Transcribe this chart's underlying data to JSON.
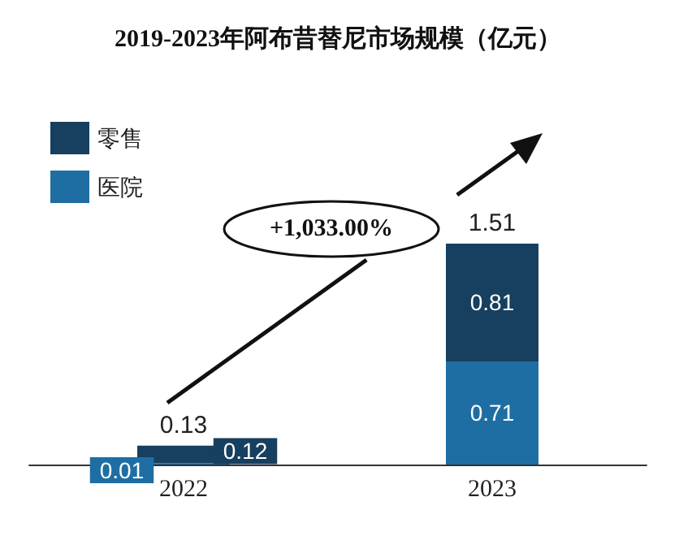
{
  "chart_data": {
    "type": "bar",
    "title": "2019-2023年阿布昔替尼市场规模（亿元）",
    "categories": [
      "2022",
      "2023"
    ],
    "stacked": true,
    "series": [
      {
        "name": "医院",
        "color": "#1f6ea3",
        "values": [
          0.01,
          0.71
        ]
      },
      {
        "name": "零售",
        "color": "#173f5f",
        "values": [
          0.12,
          0.81
        ]
      }
    ],
    "data_labels": true,
    "totals": [
      "0.13",
      "1.51"
    ],
    "annotations": [
      "+1,033.00%"
    ],
    "legend": "top left"
  }
}
